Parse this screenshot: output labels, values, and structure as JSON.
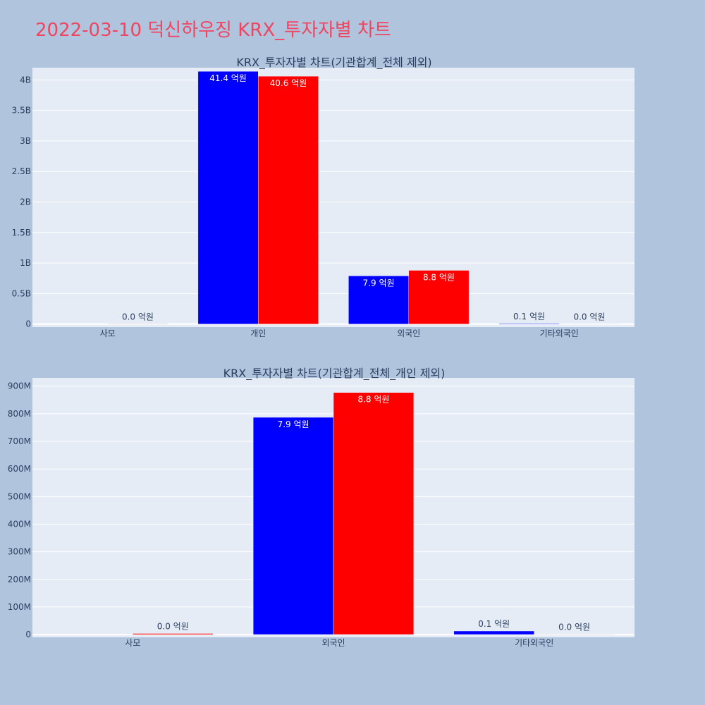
{
  "title": "2022-03-10 덕신하우징 KRX_투자자별 차트",
  "colors": {
    "background": "#b0c4de",
    "plot_bg": "#e5ecf6",
    "grid": "#ffffff",
    "title": "#ef4560",
    "text": "#2a3f5f",
    "series_a": "#0000ff",
    "series_b": "#ff0000"
  },
  "chart_data": [
    {
      "type": "bar",
      "title": "KRX_투자자별 차트(기관합계_전체 제외)",
      "categories": [
        "사모",
        "개인",
        "외국인",
        "기타외국인"
      ],
      "series": [
        {
          "color": "#0000ff",
          "values": [
            0,
            4140000000,
            790000000,
            10000000
          ],
          "labels": [
            "",
            "41.4 억원",
            "7.9 억원",
            "0.1 억원"
          ]
        },
        {
          "color": "#ff0000",
          "values": [
            4000000,
            4060000000,
            880000000,
            1000000
          ],
          "labels": [
            "0.0 억원",
            "40.6 억원",
            "8.8 억원",
            "0.0 억원"
          ]
        }
      ],
      "ylim": [
        -50000000,
        4200000000
      ],
      "yticks": [
        0,
        500000000,
        1000000000,
        1500000000,
        2000000000,
        2500000000,
        3000000000,
        3500000000,
        4000000000
      ],
      "ytick_labels": [
        "0",
        "0.5B",
        "1B",
        "1.5B",
        "2B",
        "2.5B",
        "3B",
        "3.5B",
        "4B"
      ],
      "grid": true
    },
    {
      "type": "bar",
      "title": "KRX_투자자별 차트(기관합계_전체_개인 제외)",
      "categories": [
        "사모",
        "외국인",
        "기타외국인"
      ],
      "series": [
        {
          "color": "#0000ff",
          "values": [
            0,
            787000000,
            13000000
          ],
          "labels": [
            "",
            "7.9 억원",
            "0.1 억원"
          ]
        },
        {
          "color": "#ff0000",
          "values": [
            4000000,
            877000000,
            1000000
          ],
          "labels": [
            "0.0 억원",
            "8.8 억원",
            "0.0 억원"
          ]
        }
      ],
      "ylim": [
        -10000000,
        930000000
      ],
      "yticks": [
        0,
        100000000,
        200000000,
        300000000,
        400000000,
        500000000,
        600000000,
        700000000,
        800000000,
        900000000
      ],
      "ytick_labels": [
        "0",
        "100M",
        "200M",
        "300M",
        "400M",
        "500M",
        "600M",
        "700M",
        "800M",
        "900M"
      ],
      "grid": true
    }
  ]
}
